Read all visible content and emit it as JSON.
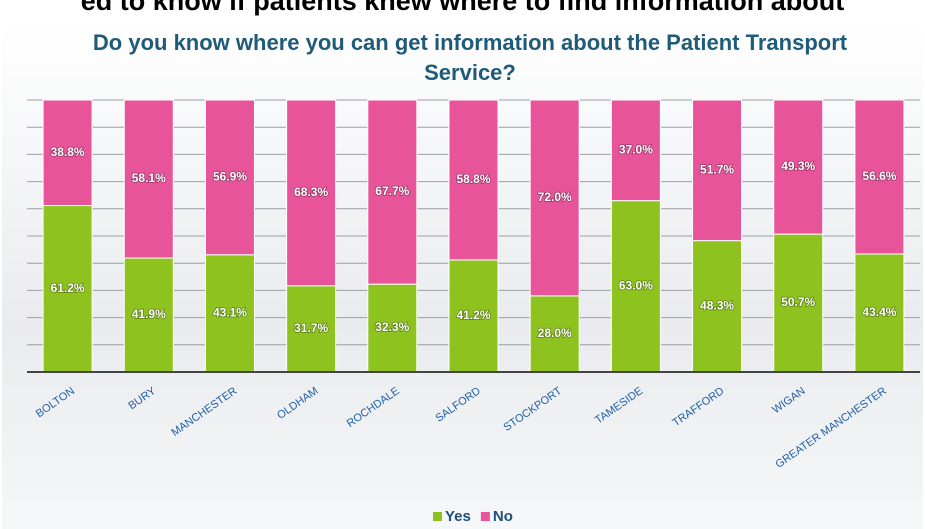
{
  "caption": "ed to know if patients knew where to find information about",
  "chart_data": {
    "type": "stacked_bar",
    "title": "Do you know where you can get information about the Patient Transport Service?",
    "categories": [
      "BOLTON",
      "BURY",
      "MANCHESTER",
      "OLDHAM",
      "ROCHDALE",
      "SALFORD",
      "STOCKPORT",
      "TAMESIDE",
      "TRAFFORD",
      "WIGAN",
      "GREATER MANCHESTER"
    ],
    "series": [
      {
        "name": "Yes",
        "color": "#8dc21f",
        "values": [
          61.2,
          41.9,
          43.1,
          31.7,
          32.3,
          41.2,
          28.0,
          63.0,
          48.3,
          50.7,
          43.4
        ],
        "value_labels": [
          "61.2%",
          "41.9%",
          "43.1%",
          "31.7%",
          "32.3%",
          "41.2%",
          "28.0%",
          "63.0%",
          "48.3%",
          "50.7%",
          "43.4%"
        ]
      },
      {
        "name": "No",
        "color": "#e8549a",
        "values": [
          38.8,
          58.1,
          56.9,
          68.3,
          67.7,
          58.8,
          72.0,
          37.0,
          51.7,
          49.3,
          56.6
        ],
        "value_labels": [
          "38.8%",
          "58.1%",
          "56.9%",
          "68.3%",
          "67.7%",
          "58.8%",
          "72.0%",
          "37.0%",
          "51.7%",
          "49.3%",
          "56.6%"
        ]
      }
    ],
    "ylim": [
      0,
      100
    ],
    "yticks": [
      0,
      10,
      20,
      30,
      40,
      50,
      60,
      70,
      80,
      90,
      100
    ],
    "grid": true,
    "legend": "bottom"
  }
}
